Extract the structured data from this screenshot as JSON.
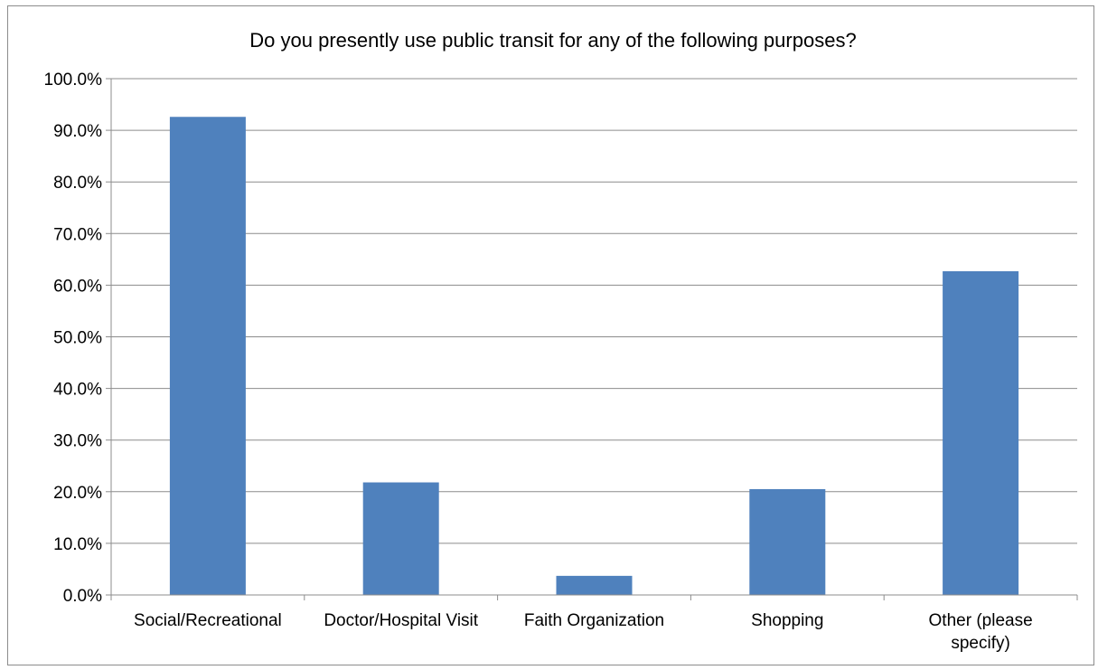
{
  "chart_data": {
    "type": "bar",
    "title": "Do you presently use public transit for any of the following purposes?",
    "xlabel": "",
    "ylabel": "",
    "categories": [
      [
        "Social/Recreational"
      ],
      [
        "Doctor/Hospital Visit"
      ],
      [
        "Faith Organization"
      ],
      [
        "Shopping"
      ],
      [
        "Other (please",
        "specify)"
      ]
    ],
    "values": [
      92.6,
      21.8,
      3.7,
      20.5,
      62.7
    ],
    "yticks": [
      "0.0%",
      "10.0%",
      "20.0%",
      "30.0%",
      "40.0%",
      "50.0%",
      "60.0%",
      "70.0%",
      "80.0%",
      "90.0%",
      "100.0%"
    ],
    "ylim": [
      0,
      100
    ],
    "grid": true,
    "legend": "none",
    "bar_color": "#4f81bd"
  }
}
